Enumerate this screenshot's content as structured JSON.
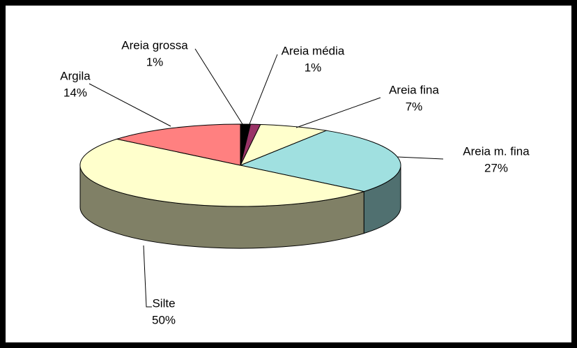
{
  "chart_data": {
    "type": "pie3d",
    "categories": [
      "Areia grossa",
      "Areia média",
      "Areia fina",
      "Areia m. fina",
      "Silte",
      "Argila"
    ],
    "values": [
      1,
      1,
      7,
      27,
      50,
      14
    ],
    "value_labels": [
      "1%",
      "1%",
      "7%",
      "27%",
      "50%",
      "14%"
    ],
    "colors": [
      "#000000",
      "#993366",
      "#FFFFCC",
      "#A0E0E0",
      "#FFFFCC",
      "#FF8080"
    ]
  }
}
